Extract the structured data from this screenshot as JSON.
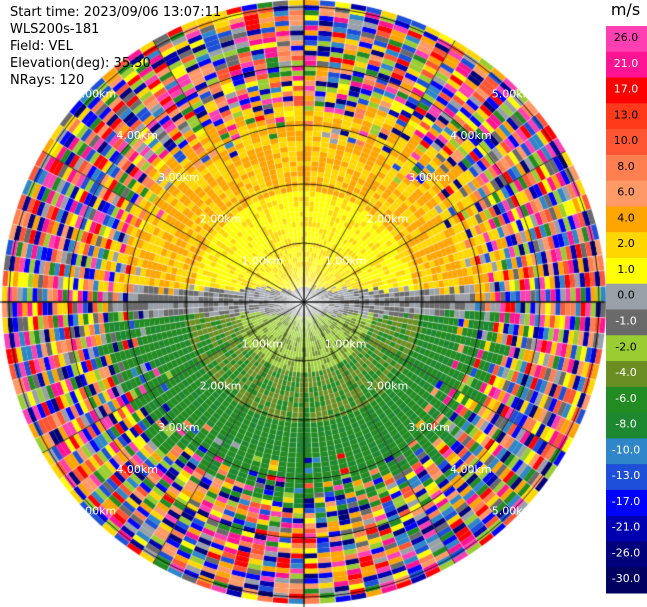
{
  "header": {
    "start_time": "Start time: 2023/09/06 13:07:11",
    "instrument": "WLS200s-181",
    "field": "Field: VEL",
    "elevation": "Elevation(deg): 35.30",
    "nrays": "NRays: 120"
  },
  "ppi": {
    "range_labels": [
      "1.00km",
      "2.00km",
      "3.00km",
      "4.00km",
      "5.00km"
    ],
    "ray_count": 120,
    "ring_step_km": 1.0
  },
  "colorbar": {
    "unit": "m/s",
    "tick_labels": [
      "26.0",
      "21.0",
      "17.0",
      "13.0",
      "10.0",
      "8.0",
      "6.0",
      "4.0",
      "2.0",
      "1.0",
      "0.0",
      "-1.0",
      "-2.0",
      "-4.0",
      "-6.0",
      "-8.0",
      "-10.0",
      "-13.0",
      "-17.0",
      "-21.0",
      "-26.0",
      "-30.0"
    ],
    "colors": [
      "#ff3fb2",
      "#ff1493",
      "#ff0000",
      "#ff3a1a",
      "#ff5533",
      "#ff7f50",
      "#ff9966",
      "#ffa500",
      "#ffd700",
      "#ffff00",
      "#9aa0a8",
      "#6a6a6a",
      "#9acd32",
      "#6b8e23",
      "#228b22",
      "#1e8830",
      "#2f86c8",
      "#1e4fd8",
      "#0000ff",
      "#0000b0",
      "#00007a",
      "#000060"
    ]
  }
}
